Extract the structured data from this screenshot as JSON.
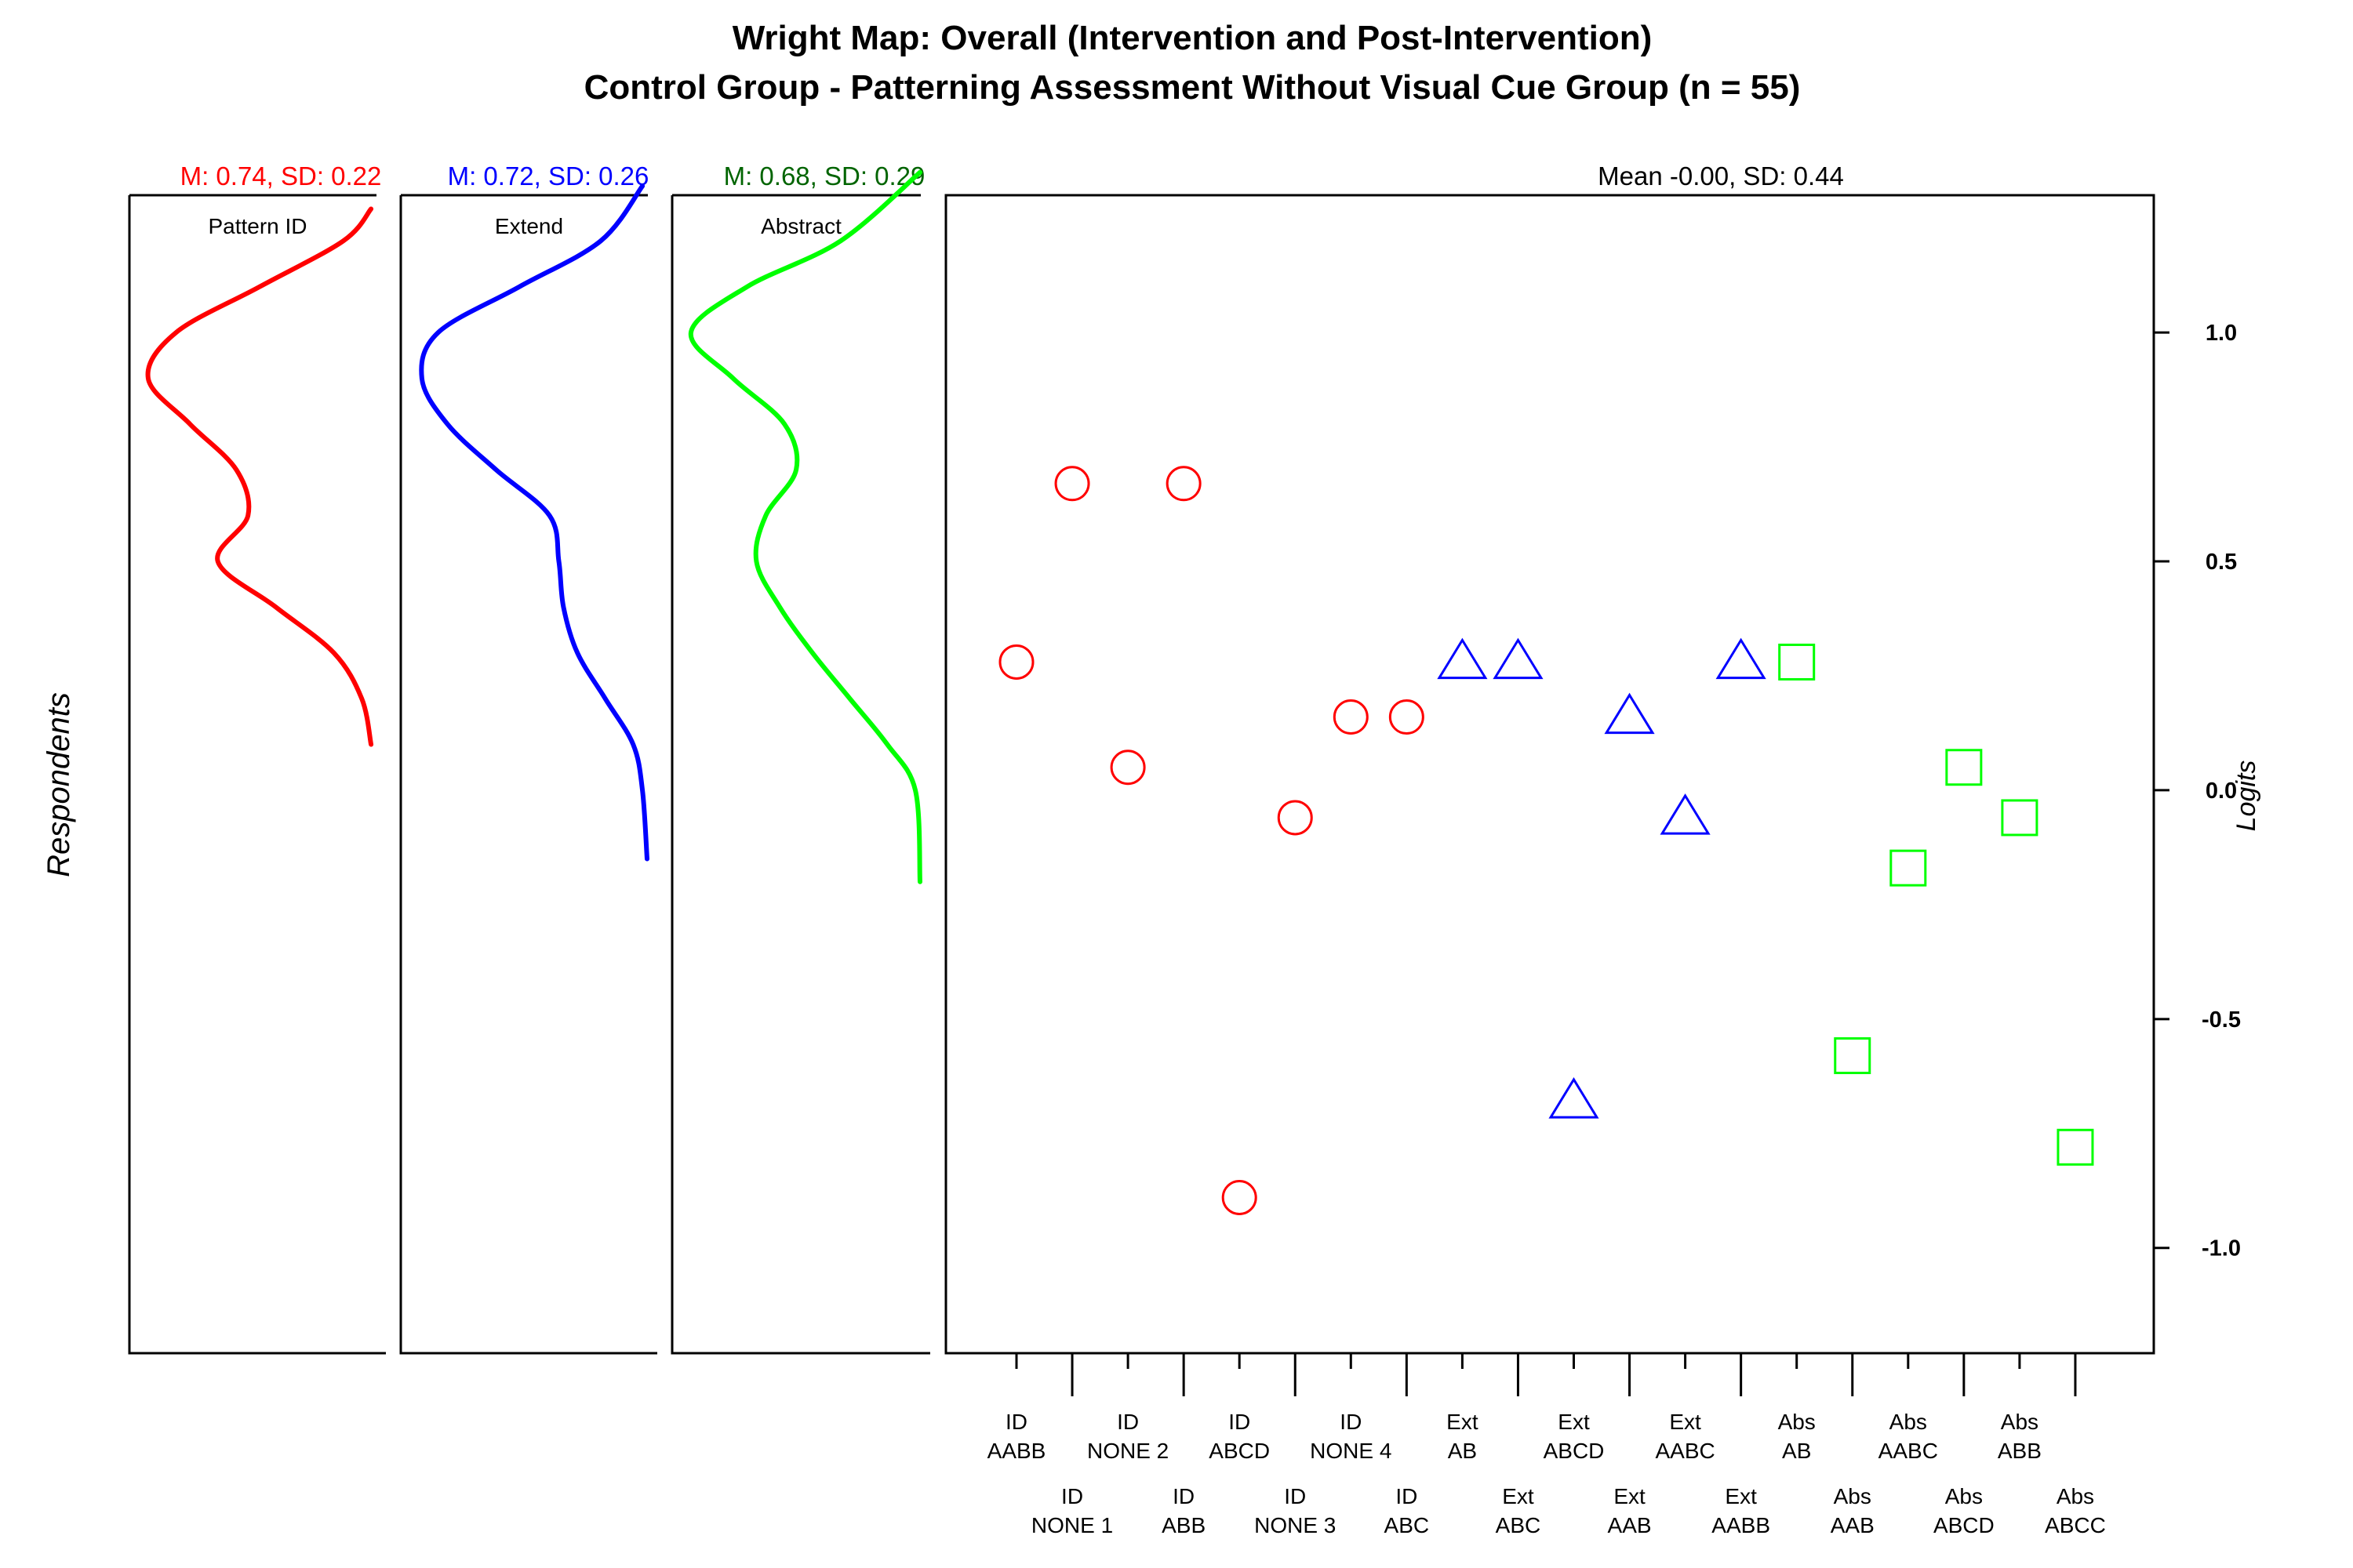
{
  "chart_data": {
    "type": "scatter",
    "title": "Wright Map: Overall (Intervention and Post-Intervention)",
    "subtitle": "Control Group - Patterning Assessment Without Visual Cue Group (n = 55)",
    "respondents_label": "Respondents",
    "ylabel": "Logits",
    "ylim": [
      -1.23,
      1.3
    ],
    "yticks": [
      1.0,
      0.5,
      0.0,
      -0.5,
      -1.0
    ],
    "ytick_labels": [
      "1.0",
      "0.5",
      "0.0",
      "-0.5",
      "-1.0"
    ],
    "person_stat": "Mean -0.00, SD: 0.44",
    "panels": [
      {
        "label": "Pattern ID",
        "stat": "M: 0.74, SD: 0.22",
        "color": "#ff0000",
        "stat_color": "#ff0000",
        "y": [
          1.27,
          1.2,
          1.1,
          1.0,
          0.9,
          0.8,
          0.7,
          0.6,
          0.5,
          0.4,
          0.3,
          0.2,
          0.1
        ],
        "density": [
          0.02,
          0.14,
          0.5,
          0.86,
          0.98,
          0.8,
          0.6,
          0.55,
          0.68,
          0.43,
          0.18,
          0.06,
          0.02
        ]
      },
      {
        "label": "Extend",
        "stat": "M: 0.72, SD: 0.26",
        "color": "#0000ff",
        "stat_color": "#0000ff",
        "y": [
          1.32,
          1.2,
          1.1,
          1.0,
          0.9,
          0.8,
          0.7,
          0.6,
          0.5,
          0.4,
          0.3,
          0.2,
          0.1,
          0.0,
          -0.15
        ],
        "density": [
          0.02,
          0.2,
          0.55,
          0.9,
          0.97,
          0.86,
          0.65,
          0.42,
          0.38,
          0.36,
          0.3,
          0.18,
          0.06,
          0.02,
          0.0
        ]
      },
      {
        "label": "Abstract",
        "stat": "M: 0.68, SD: 0.29",
        "color": "#00ff00",
        "stat_color": "#006400",
        "y": [
          1.35,
          1.2,
          1.1,
          1.0,
          0.9,
          0.8,
          0.7,
          0.6,
          0.5,
          0.4,
          0.3,
          0.2,
          0.1,
          0.0,
          -0.2
        ],
        "density": [
          0.0,
          0.34,
          0.74,
          0.98,
          0.8,
          0.58,
          0.53,
          0.66,
          0.7,
          0.6,
          0.46,
          0.3,
          0.14,
          0.02,
          0.0
        ]
      }
    ],
    "items": [
      {
        "label": [
          "ID",
          "AABB"
        ],
        "group": "ID",
        "difficulty": 0.28
      },
      {
        "label": [
          "ID",
          "NONE 1"
        ],
        "group": "ID",
        "difficulty": 0.67
      },
      {
        "label": [
          "ID",
          "NONE 2"
        ],
        "group": "ID",
        "difficulty": 0.05
      },
      {
        "label": [
          "ID",
          "ABB"
        ],
        "group": "ID",
        "difficulty": 0.67
      },
      {
        "label": [
          "ID",
          "ABCD"
        ],
        "group": "ID",
        "difficulty": -0.89
      },
      {
        "label": [
          "ID",
          "NONE 3"
        ],
        "group": "ID",
        "difficulty": -0.06
      },
      {
        "label": [
          "ID",
          "NONE 4"
        ],
        "group": "ID",
        "difficulty": 0.16
      },
      {
        "label": [
          "ID",
          "ABC"
        ],
        "group": "ID",
        "difficulty": 0.16
      },
      {
        "label": [
          "Ext",
          "AB"
        ],
        "group": "Ext",
        "difficulty": 0.28
      },
      {
        "label": [
          "Ext",
          "ABC"
        ],
        "group": "Ext",
        "difficulty": 0.28
      },
      {
        "label": [
          "Ext",
          "ABCD"
        ],
        "group": "Ext",
        "difficulty": -0.68
      },
      {
        "label": [
          "Ext",
          "AAB"
        ],
        "group": "Ext",
        "difficulty": 0.16
      },
      {
        "label": [
          "Ext",
          "AABC"
        ],
        "group": "Ext",
        "difficulty": -0.06
      },
      {
        "label": [
          "Ext",
          "AABB"
        ],
        "group": "Ext",
        "difficulty": 0.28
      },
      {
        "label": [
          "Abs",
          "AB"
        ],
        "group": "Abs",
        "difficulty": 0.28
      },
      {
        "label": [
          "Abs",
          "AAB"
        ],
        "group": "Abs",
        "difficulty": -0.58
      },
      {
        "label": [
          "Abs",
          "AABC"
        ],
        "group": "Abs",
        "difficulty": -0.17
      },
      {
        "label": [
          "Abs",
          "ABCD"
        ],
        "group": "Abs",
        "difficulty": 0.05
      },
      {
        "label": [
          "Abs",
          "ABB"
        ],
        "group": "Abs",
        "difficulty": -0.06
      },
      {
        "label": [
          "Abs",
          "ABCC"
        ],
        "group": "Abs",
        "difficulty": -0.78
      }
    ],
    "groups": {
      "ID": {
        "marker": "circle",
        "color": "#ff0000"
      },
      "Ext": {
        "marker": "triangle",
        "color": "#0000ff"
      },
      "Abs": {
        "marker": "square",
        "color": "#00ff00"
      }
    },
    "grid": false
  }
}
